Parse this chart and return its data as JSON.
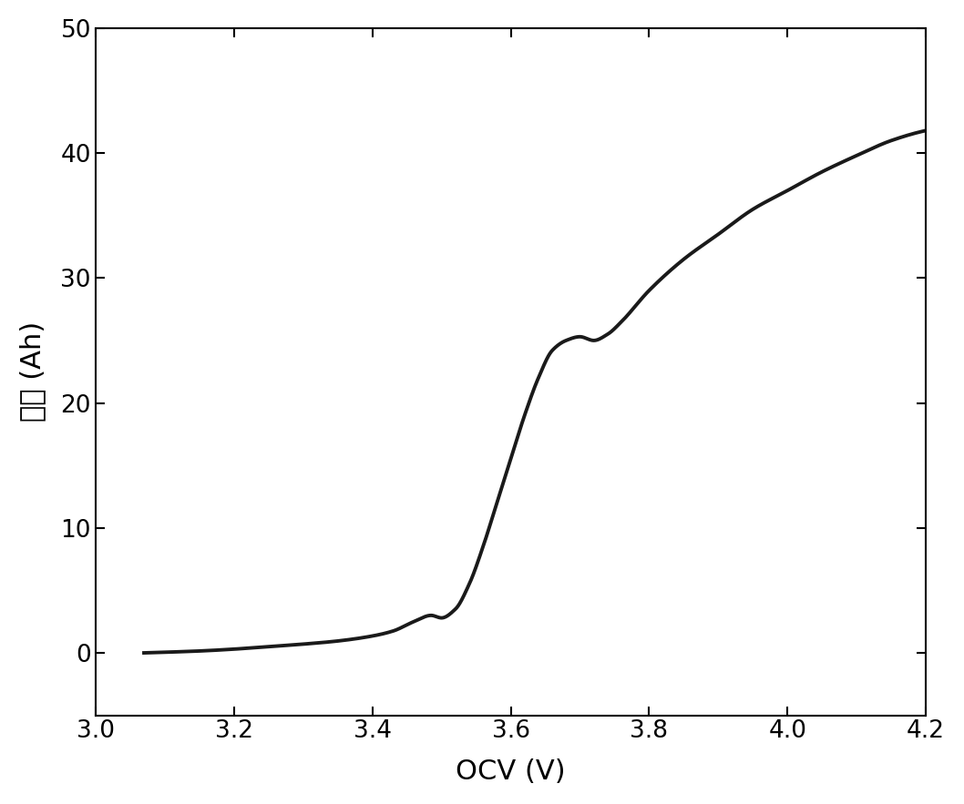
{
  "xlabel": "OCV (V)",
  "ylabel": "容量 (Ah)",
  "xlim": [
    3.0,
    4.2
  ],
  "ylim": [
    -5,
    50
  ],
  "xticks": [
    3.0,
    3.2,
    3.4,
    3.6,
    3.8,
    4.0,
    4.2
  ],
  "yticks": [
    0,
    10,
    20,
    30,
    40,
    50
  ],
  "line_color": "#1a1a1a",
  "line_width": 2.8,
  "background_color": "#ffffff",
  "xlabel_fontsize": 22,
  "ylabel_fontsize": 22,
  "tick_fontsize": 19,
  "curve_x": [
    3.07,
    3.1,
    3.15,
    3.2,
    3.25,
    3.3,
    3.35,
    3.4,
    3.43,
    3.46,
    3.485,
    3.5,
    3.52,
    3.54,
    3.56,
    3.58,
    3.6,
    3.62,
    3.64,
    3.66,
    3.68,
    3.7,
    3.72,
    3.74,
    3.76,
    3.8,
    3.85,
    3.9,
    3.95,
    4.0,
    4.05,
    4.1,
    4.15,
    4.2
  ],
  "curve_y": [
    0.0,
    0.05,
    0.15,
    0.3,
    0.5,
    0.7,
    0.95,
    1.35,
    1.75,
    2.5,
    3.0,
    2.8,
    3.5,
    5.5,
    8.5,
    12.0,
    15.5,
    19.0,
    22.0,
    24.2,
    25.0,
    25.3,
    25.0,
    25.5,
    26.5,
    29.0,
    31.5,
    33.5,
    35.5,
    37.0,
    38.5,
    39.8,
    41.0,
    41.8
  ]
}
